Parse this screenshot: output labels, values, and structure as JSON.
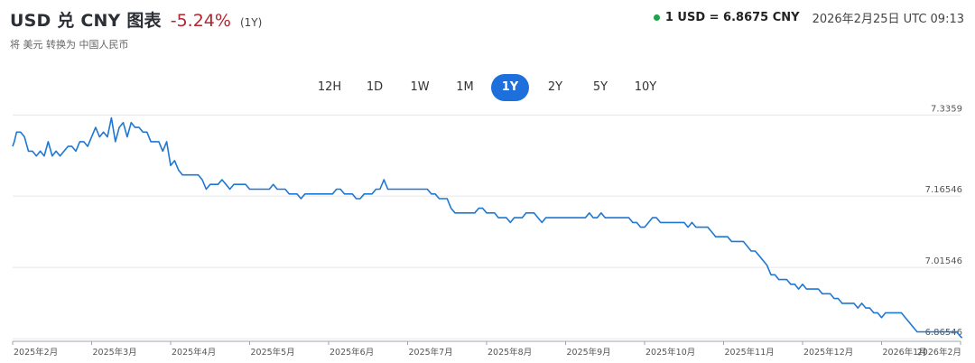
{
  "header": {
    "title": "USD 兑 CNY 图表",
    "change": "-5.24%",
    "period": "(1Y)",
    "subtitle": "将 美元 转换为 中国人民币"
  },
  "rate": {
    "value": "1 USD = 6.8675 CNY",
    "timestamp": "2026年2月25日 UTC 09:13",
    "status_color": "#1ea34a"
  },
  "tabs": [
    {
      "label": "12H",
      "active": false
    },
    {
      "label": "1D",
      "active": false
    },
    {
      "label": "1W",
      "active": false
    },
    {
      "label": "1M",
      "active": false
    },
    {
      "label": "1Y",
      "active": true
    },
    {
      "label": "2Y",
      "active": false
    },
    {
      "label": "5Y",
      "active": false
    },
    {
      "label": "10Y",
      "active": false
    }
  ],
  "colors": {
    "accent": "#1d6fdc",
    "line": "#1f77d4",
    "negative": "#b3262e"
  },
  "chart_data": {
    "type": "line",
    "title": "",
    "xlabel": "",
    "ylabel": "",
    "ylim": [
      6.86,
      7.35
    ],
    "y_ticks": [
      "7.3359",
      "7.16546",
      "7.01546",
      "6.86546"
    ],
    "y_tick_values": [
      7.3359,
      7.16546,
      7.01546,
      6.86546
    ],
    "x_ticks": [
      "2025年2月",
      "2025年3月",
      "2025年4月",
      "2025年5月",
      "2025年6月",
      "2025年7月",
      "2025年8月",
      "2025年9月",
      "2025年10月",
      "2025年11月",
      "2025年12月",
      "2026年1月",
      "2026年2月"
    ],
    "grid": true,
    "series": [
      {
        "name": "",
        "x": [
          0,
          0.02,
          0.05,
          0.1,
          0.15,
          0.2,
          0.25,
          0.3,
          0.35,
          0.4,
          0.45,
          0.5,
          0.55,
          0.6,
          0.65,
          0.7,
          0.75,
          0.8,
          0.85,
          0.9,
          0.95,
          1.0,
          1.05,
          1.1,
          1.15,
          1.2,
          1.25,
          1.3,
          1.35,
          1.4,
          1.45,
          1.5,
          1.55,
          1.6,
          1.65,
          1.7,
          1.75,
          1.8,
          1.85,
          1.9,
          1.95,
          2.0,
          2.05,
          2.1,
          2.15,
          2.2,
          2.25,
          2.3,
          2.35,
          2.4,
          2.45,
          2.5,
          2.55,
          2.6,
          2.65,
          2.7,
          2.75,
          2.8,
          2.85,
          2.9,
          2.95,
          3.0,
          3.05,
          3.1,
          3.15,
          3.2,
          3.25,
          3.3,
          3.35,
          3.4,
          3.45,
          3.5,
          3.55,
          3.6,
          3.65,
          3.7,
          3.75,
          3.8,
          3.85,
          3.9,
          3.95,
          4.0,
          4.05,
          4.1,
          4.15,
          4.2,
          4.25,
          4.3,
          4.35,
          4.4,
          4.45,
          4.5,
          4.55,
          4.6,
          4.65,
          4.7,
          4.75,
          4.8,
          4.85,
          4.9,
          4.95,
          5.0,
          5.05,
          5.1,
          5.15,
          5.2,
          5.25,
          5.3,
          5.35,
          5.4,
          5.45,
          5.5,
          5.55,
          5.6,
          5.65,
          5.7,
          5.75,
          5.8,
          5.85,
          5.9,
          5.95,
          6.0,
          6.05,
          6.1,
          6.15,
          6.2,
          6.25,
          6.3,
          6.35,
          6.4,
          6.45,
          6.5,
          6.55,
          6.6,
          6.65,
          6.7,
          6.75,
          6.8,
          6.85,
          6.9,
          6.95,
          7.0,
          7.05,
          7.1,
          7.15,
          7.2,
          7.25,
          7.3,
          7.35,
          7.4,
          7.45,
          7.5,
          7.55,
          7.6,
          7.65,
          7.7,
          7.75,
          7.8,
          7.85,
          7.9,
          7.95,
          8.0,
          8.05,
          8.1,
          8.15,
          8.2,
          8.25,
          8.3,
          8.35,
          8.4,
          8.45,
          8.5,
          8.55,
          8.6,
          8.65,
          8.7,
          8.75,
          8.8,
          8.85,
          8.9,
          8.95,
          9.0,
          9.05,
          9.1,
          9.15,
          9.2,
          9.25,
          9.3,
          9.35,
          9.4,
          9.45,
          9.5,
          9.55,
          9.6,
          9.65,
          9.7,
          9.75,
          9.8,
          9.85,
          9.9,
          9.95,
          10.0,
          10.05,
          10.1,
          10.15,
          10.2,
          10.25,
          10.3,
          10.35,
          10.4,
          10.45,
          10.5,
          10.55,
          10.6,
          10.65,
          10.7,
          10.75,
          10.8,
          10.85,
          10.9,
          10.95,
          11.0,
          11.05,
          11.1,
          11.15,
          11.2,
          11.25,
          11.3,
          11.35,
          11.4,
          11.45,
          11.5,
          11.55,
          11.6,
          11.65,
          11.7,
          11.75,
          11.8,
          11.85,
          11.9,
          11.95,
          12.0,
          12.02
        ],
        "values": [
          7.27,
          7.28,
          7.3,
          7.3,
          7.29,
          7.26,
          7.26,
          7.25,
          7.26,
          7.25,
          7.28,
          7.25,
          7.26,
          7.25,
          7.26,
          7.27,
          7.27,
          7.26,
          7.28,
          7.28,
          7.27,
          7.29,
          7.31,
          7.29,
          7.3,
          7.29,
          7.33,
          7.28,
          7.31,
          7.32,
          7.29,
          7.32,
          7.31,
          7.31,
          7.3,
          7.3,
          7.28,
          7.28,
          7.28,
          7.26,
          7.28,
          7.23,
          7.24,
          7.22,
          7.21,
          7.21,
          7.21,
          7.21,
          7.21,
          7.2,
          7.18,
          7.19,
          7.19,
          7.19,
          7.2,
          7.19,
          7.18,
          7.19,
          7.19,
          7.19,
          7.19,
          7.18,
          7.18,
          7.18,
          7.18,
          7.18,
          7.18,
          7.19,
          7.18,
          7.18,
          7.18,
          7.17,
          7.17,
          7.17,
          7.16,
          7.17,
          7.17,
          7.17,
          7.17,
          7.17,
          7.17,
          7.17,
          7.17,
          7.18,
          7.18,
          7.17,
          7.17,
          7.17,
          7.16,
          7.16,
          7.17,
          7.17,
          7.17,
          7.18,
          7.18,
          7.2,
          7.18,
          7.18,
          7.18,
          7.18,
          7.18,
          7.18,
          7.18,
          7.18,
          7.18,
          7.18,
          7.18,
          7.17,
          7.17,
          7.16,
          7.16,
          7.16,
          7.14,
          7.13,
          7.13,
          7.13,
          7.13,
          7.13,
          7.13,
          7.14,
          7.14,
          7.13,
          7.13,
          7.13,
          7.12,
          7.12,
          7.12,
          7.11,
          7.12,
          7.12,
          7.12,
          7.13,
          7.13,
          7.13,
          7.12,
          7.11,
          7.12,
          7.12,
          7.12,
          7.12,
          7.12,
          7.12,
          7.12,
          7.12,
          7.12,
          7.12,
          7.12,
          7.13,
          7.12,
          7.12,
          7.13,
          7.12,
          7.12,
          7.12,
          7.12,
          7.12,
          7.12,
          7.12,
          7.11,
          7.11,
          7.1,
          7.1,
          7.11,
          7.12,
          7.12,
          7.11,
          7.11,
          7.11,
          7.11,
          7.11,
          7.11,
          7.11,
          7.1,
          7.11,
          7.1,
          7.1,
          7.1,
          7.1,
          7.09,
          7.08,
          7.08,
          7.08,
          7.08,
          7.07,
          7.07,
          7.07,
          7.07,
          7.06,
          7.05,
          7.05,
          7.04,
          7.03,
          7.02,
          7.0,
          7.0,
          6.99,
          6.99,
          6.99,
          6.98,
          6.98,
          6.97,
          6.98,
          6.97,
          6.97,
          6.97,
          6.97,
          6.96,
          6.96,
          6.96,
          6.95,
          6.95,
          6.94,
          6.94,
          6.94,
          6.94,
          6.93,
          6.94,
          6.93,
          6.93,
          6.92,
          6.92,
          6.91,
          6.92,
          6.92,
          6.92,
          6.92,
          6.92,
          6.91,
          6.9,
          6.89,
          6.88,
          6.88,
          6.88,
          6.88,
          6.88,
          6.88,
          6.88,
          6.88,
          6.88,
          6.88,
          6.88,
          6.87,
          6.8675
        ]
      }
    ]
  }
}
